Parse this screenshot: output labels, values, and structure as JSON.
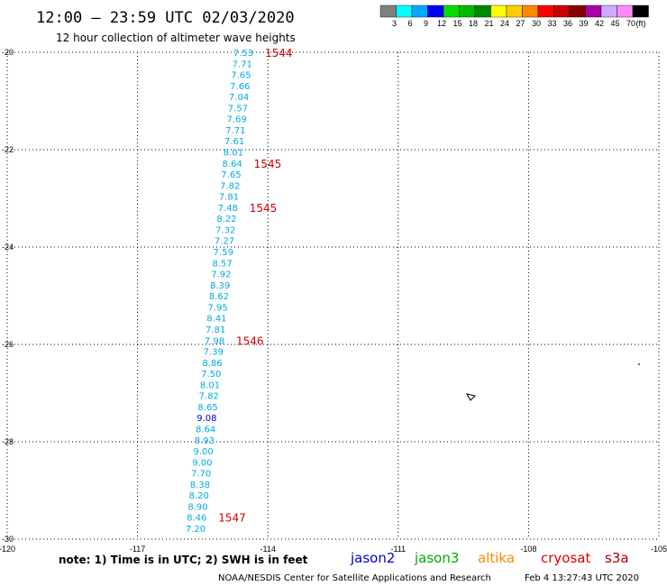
{
  "header": {
    "title": "12:00 – 23:59 UTC 02/03/2020",
    "subtitle": "12 hour collection of altimeter wave heights"
  },
  "legend": {
    "unit": "(ft)",
    "bins": [
      {
        "label": "3",
        "color": "#808080"
      },
      {
        "label": "6",
        "color": "#00ffff"
      },
      {
        "label": "9",
        "color": "#00aaff"
      },
      {
        "label": "12",
        "color": "#0000ff"
      },
      {
        "label": "15",
        "color": "#00dd00"
      },
      {
        "label": "18",
        "color": "#00bb00"
      },
      {
        "label": "21",
        "color": "#008800"
      },
      {
        "label": "24",
        "color": "#ffff00"
      },
      {
        "label": "27",
        "color": "#ffcc00"
      },
      {
        "label": "30",
        "color": "#ff8800"
      },
      {
        "label": "33",
        "color": "#ff0000"
      },
      {
        "label": "36",
        "color": "#cc0000"
      },
      {
        "label": "39",
        "color": "#880000"
      },
      {
        "label": "42",
        "color": "#aa00aa"
      },
      {
        "label": "45",
        "color": "#ccaaff"
      },
      {
        "label": "70",
        "color": "#ff88ff"
      },
      {
        "label": "",
        "color": "#000000"
      }
    ]
  },
  "axes": {
    "lon_labels": [
      "-120",
      "-117",
      "-114",
      "-111",
      "-108",
      "-105"
    ],
    "lat_labels": [
      "-20",
      "-22",
      "-24",
      "-26",
      "-28",
      "-30"
    ]
  },
  "wave_heights": [
    {
      "value": "7.53",
      "color": "#00aadd"
    },
    {
      "value": "7.71",
      "color": "#00aadd"
    },
    {
      "value": "7.65",
      "color": "#00aadd"
    },
    {
      "value": "7.66",
      "color": "#00aadd"
    },
    {
      "value": "7.04",
      "color": "#00aadd"
    },
    {
      "value": "7.57",
      "color": "#00aadd"
    },
    {
      "value": "7.69",
      "color": "#00aadd"
    },
    {
      "value": "7.71",
      "color": "#00aadd"
    },
    {
      "value": "7.61",
      "color": "#00aadd"
    },
    {
      "value": "8.01",
      "color": "#00aadd"
    },
    {
      "value": "8.64",
      "color": "#00aadd"
    },
    {
      "value": "7.65",
      "color": "#00aadd"
    },
    {
      "value": "7.82",
      "color": "#00aadd"
    },
    {
      "value": "7.81",
      "color": "#00aadd"
    },
    {
      "value": "7.48",
      "color": "#00aadd"
    },
    {
      "value": "8.22",
      "color": "#00aadd"
    },
    {
      "value": "7.32",
      "color": "#00aadd"
    },
    {
      "value": "7.27",
      "color": "#00aadd"
    },
    {
      "value": "7.59",
      "color": "#00aadd"
    },
    {
      "value": "8.57",
      "color": "#00aadd"
    },
    {
      "value": "7.92",
      "color": "#00aadd"
    },
    {
      "value": "8.39",
      "color": "#00aadd"
    },
    {
      "value": "8.62",
      "color": "#00aadd"
    },
    {
      "value": "7.95",
      "color": "#00aadd"
    },
    {
      "value": "8.41",
      "color": "#00aadd"
    },
    {
      "value": "7.81",
      "color": "#00aadd"
    },
    {
      "value": "7.98",
      "color": "#00aadd"
    },
    {
      "value": "7.39",
      "color": "#00aadd"
    },
    {
      "value": "8.86",
      "color": "#00aadd"
    },
    {
      "value": "7.50",
      "color": "#00aadd"
    },
    {
      "value": "8.01",
      "color": "#00aadd"
    },
    {
      "value": "7.82",
      "color": "#00aadd"
    },
    {
      "value": "8.65",
      "color": "#00aadd"
    },
    {
      "value": "9.08",
      "color": "#0000cc"
    },
    {
      "value": "8.64",
      "color": "#00aadd"
    },
    {
      "value": "8.93",
      "color": "#00aadd"
    },
    {
      "value": "9.00",
      "color": "#00aadd"
    },
    {
      "value": "9.00",
      "color": "#00aadd"
    },
    {
      "value": "7.70",
      "color": "#00aadd"
    },
    {
      "value": "8.38",
      "color": "#00aadd"
    },
    {
      "value": "8.20",
      "color": "#00aadd"
    },
    {
      "value": "8.90",
      "color": "#00aadd"
    },
    {
      "value": "8.46",
      "color": "#00aadd"
    },
    {
      "value": "7.20",
      "color": "#00aadd"
    }
  ],
  "pass_times": [
    "1544",
    "1545",
    "1545",
    "1546",
    "1547"
  ],
  "footer": {
    "note": "note:  1) Time is in UTC; 2) SWH is in feet",
    "satellites": [
      {
        "name": "jason2",
        "color": "#0000cc"
      },
      {
        "name": "jason3",
        "color": "#00aa00"
      },
      {
        "name": "altika",
        "color": "#ff8800"
      },
      {
        "name": "cryosat",
        "color": "#dd0000"
      },
      {
        "name": "s3a",
        "color": "#aa0000"
      }
    ],
    "credit": "NOAA/NESDIS Center for Satellite Applications and Research",
    "timestamp": "Feb  4 13:27:43 UTC 2020"
  }
}
